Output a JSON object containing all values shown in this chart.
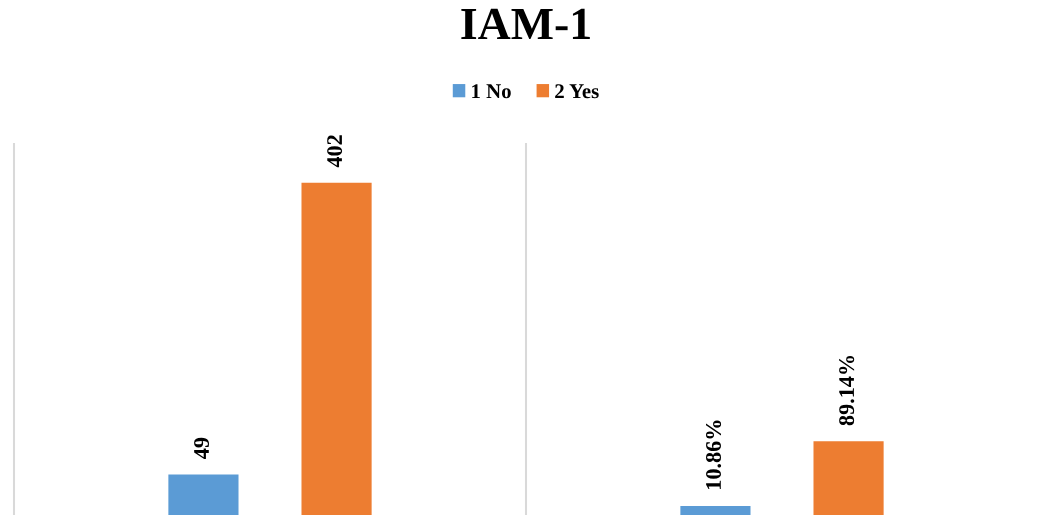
{
  "chart_data": {
    "type": "bar",
    "title": "IAM-1",
    "categories": [
      null,
      null
    ],
    "series": [
      {
        "name": "1 No",
        "color": "#5b9bd5",
        "values": [
          49,
          10.86
        ],
        "value_labels": [
          "49",
          "10.86%"
        ]
      },
      {
        "name": "2 Yes",
        "color": "#ed7d31",
        "values": [
          402,
          89.14
        ],
        "value_labels": [
          "402",
          "89.14%"
        ]
      }
    ],
    "grid": "x",
    "legend": "top"
  }
}
